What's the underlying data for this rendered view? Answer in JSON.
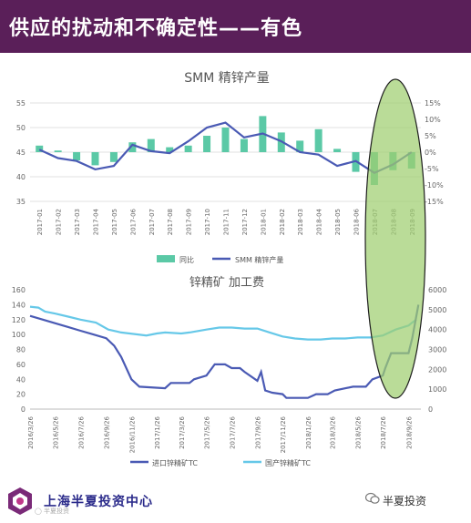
{
  "header": {
    "title": "供应的扰动和不确定性——有色"
  },
  "footer": {
    "company": "上海半夏投资中心",
    "watermark": "◯ 半夏投资",
    "wechat_label": "半夏投资"
  },
  "colors": {
    "header_bg": "#5a1f59",
    "bar": "#5bc9a6",
    "line_dark": "#4a5ab4",
    "line_light": "#66c8e8",
    "highlight": "#9fcf70"
  },
  "chart_data": [
    {
      "type": "bar+line",
      "title": "SMM 精锌产量",
      "categories": [
        "2017-01",
        "2017-02",
        "2017-03",
        "2017-04",
        "2017-05",
        "2017-06",
        "2017-07",
        "2017-08",
        "2017-09",
        "2017-10",
        "2017-11",
        "2017-12",
        "2018-01",
        "2018-02",
        "2018-03",
        "2018-04",
        "2018-05",
        "2018-06",
        "2018-07",
        "2018-08",
        "2018-09"
      ],
      "series": [
        {
          "name": "同比",
          "type": "bar",
          "axis": "right",
          "values": [
            2,
            0.5,
            -2.5,
            -4,
            -3,
            3,
            4,
            1.5,
            2,
            5,
            7.5,
            4,
            11,
            6,
            3.5,
            7,
            1,
            -6,
            -10,
            -5.5,
            -5
          ]
        },
        {
          "name": "SMM 精锌产量",
          "type": "line",
          "axis": "left",
          "values": [
            45.5,
            43.8,
            43.2,
            41.5,
            42.2,
            46.5,
            45.2,
            44.8,
            47.2,
            50,
            51,
            48,
            48.8,
            47.2,
            45,
            44.5,
            42.2,
            43.2,
            40.8,
            42.5,
            45
          ]
        }
      ],
      "y_left": {
        "range": [
          35,
          55
        ],
        "ticks": [
          "35",
          "40",
          "45",
          "50",
          "55"
        ]
      },
      "y_right": {
        "range": [
          -15,
          15
        ],
        "ticks": [
          "-15%",
          "-10%",
          "-5%",
          "0%",
          "5%",
          "10%",
          "15%"
        ]
      },
      "legend": {
        "position": "bottom",
        "items": [
          "同比",
          "SMM 精锌产量"
        ]
      },
      "highlight": {
        "from": "2018-07",
        "to": "2018-09"
      }
    },
    {
      "type": "line",
      "title": "锌精矿 加工费",
      "x_ticks": [
        "2016/3/26",
        "2016/5/26",
        "2016/7/26",
        "2016/9/26",
        "2016/11/26",
        "2017/1/26",
        "2017/3/26",
        "2017/5/26",
        "2017/7/26",
        "2017/9/26",
        "2017/11/26",
        "2018/1/26",
        "2018/3/26",
        "2018/5/26",
        "2018/7/26",
        "2018/9/26"
      ],
      "x_range": [
        "2016-03-26",
        "2018-10-26"
      ],
      "series": [
        {
          "name": "进口锌精矿TC",
          "axis": "left",
          "points": [
            [
              "2016-03-26",
              125
            ],
            [
              "2016-04-26",
              120
            ],
            [
              "2016-05-26",
              115
            ],
            [
              "2016-06-26",
              110
            ],
            [
              "2016-07-26",
              105
            ],
            [
              "2016-08-26",
              100
            ],
            [
              "2016-09-26",
              95
            ],
            [
              "2016-10-15",
              85
            ],
            [
              "2016-11-01",
              70
            ],
            [
              "2016-11-26",
              40
            ],
            [
              "2016-12-15",
              30
            ],
            [
              "2017-02-15",
              28
            ],
            [
              "2017-03-01",
              35
            ],
            [
              "2017-04-15",
              35
            ],
            [
              "2017-04-26",
              40
            ],
            [
              "2017-05-26",
              45
            ],
            [
              "2017-06-15",
              60
            ],
            [
              "2017-07-10",
              60
            ],
            [
              "2017-07-26",
              55
            ],
            [
              "2017-08-15",
              55
            ],
            [
              "2017-08-26",
              50
            ],
            [
              "2017-09-26",
              38
            ],
            [
              "2017-10-05",
              50
            ],
            [
              "2017-10-15",
              25
            ],
            [
              "2017-11-01",
              22
            ],
            [
              "2017-11-26",
              20
            ],
            [
              "2017-12-05",
              15
            ],
            [
              "2018-01-26",
              15
            ],
            [
              "2018-02-15",
              20
            ],
            [
              "2018-03-15",
              20
            ],
            [
              "2018-04-01",
              25
            ],
            [
              "2018-05-15",
              30
            ],
            [
              "2018-06-15",
              30
            ],
            [
              "2018-07-01",
              40
            ],
            [
              "2018-07-26",
              45
            ],
            [
              "2018-08-01",
              55
            ],
            [
              "2018-08-15",
              75
            ],
            [
              "2018-09-10",
              75
            ],
            [
              "2018-09-26",
              75
            ],
            [
              "2018-10-05",
              95
            ],
            [
              "2018-10-20",
              140
            ]
          ]
        },
        {
          "name": "国产锌精矿TC",
          "axis": "right",
          "points": [
            [
              "2016-03-26",
              5150
            ],
            [
              "2016-04-15",
              5100
            ],
            [
              "2016-05-01",
              4900
            ],
            [
              "2016-05-26",
              4800
            ],
            [
              "2016-06-26",
              4650
            ],
            [
              "2016-07-26",
              4500
            ],
            [
              "2016-09-01",
              4350
            ],
            [
              "2016-10-01",
              4000
            ],
            [
              "2016-11-01",
              3850
            ],
            [
              "2017-01-01",
              3700
            ],
            [
              "2017-01-26",
              3800
            ],
            [
              "2017-02-15",
              3850
            ],
            [
              "2017-03-26",
              3800
            ],
            [
              "2017-04-15",
              3850
            ],
            [
              "2017-05-26",
              4000
            ],
            [
              "2017-06-26",
              4100
            ],
            [
              "2017-07-26",
              4100
            ],
            [
              "2017-08-26",
              4050
            ],
            [
              "2017-09-26",
              4050
            ],
            [
              "2017-10-26",
              3850
            ],
            [
              "2017-11-26",
              3650
            ],
            [
              "2017-12-26",
              3550
            ],
            [
              "2018-01-26",
              3500
            ],
            [
              "2018-02-26",
              3500
            ],
            [
              "2018-03-26",
              3550
            ],
            [
              "2018-04-26",
              3550
            ],
            [
              "2018-05-26",
              3600
            ],
            [
              "2018-06-26",
              3600
            ],
            [
              "2018-07-26",
              3700
            ],
            [
              "2018-08-26",
              4000
            ],
            [
              "2018-09-26",
              4200
            ],
            [
              "2018-10-05",
              4350
            ],
            [
              "2018-10-15",
              4500
            ]
          ]
        }
      ],
      "y_left": {
        "range": [
          0,
          160
        ],
        "ticks": [
          "0",
          "20",
          "40",
          "60",
          "80",
          "100",
          "120",
          "140",
          "160"
        ]
      },
      "y_right": {
        "range": [
          0,
          6000
        ],
        "ticks": [
          "0",
          "1000",
          "2000",
          "3000",
          "4000",
          "5000",
          "6000"
        ]
      },
      "legend": {
        "position": "bottom",
        "items": [
          "进口锌精矿TC",
          "国产锌精矿TC"
        ]
      },
      "highlight": {
        "from": "2018-07-01",
        "to": "2018-10-26"
      }
    }
  ]
}
